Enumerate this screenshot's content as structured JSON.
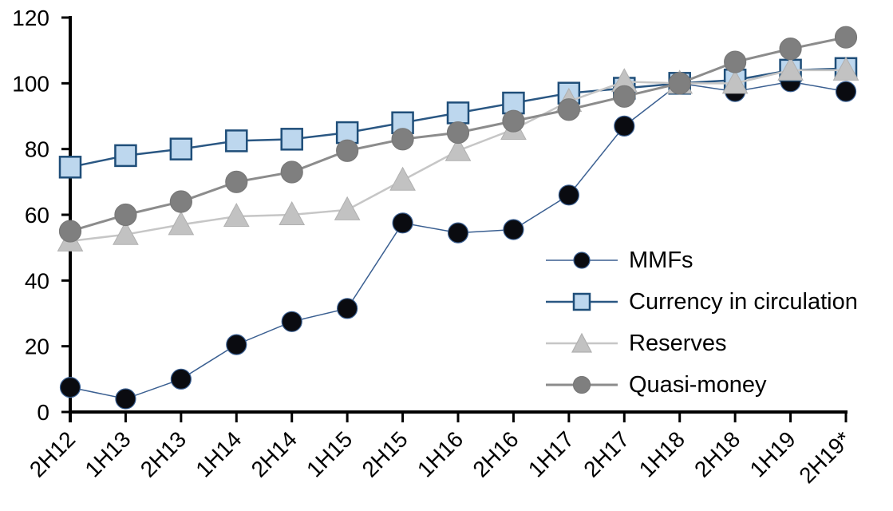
{
  "chart_data": {
    "type": "line",
    "title": "",
    "xlabel": "",
    "ylabel": "",
    "categories": [
      "2H12",
      "1H13",
      "2H13",
      "1H14",
      "2H14",
      "1H15",
      "2H15",
      "1H16",
      "2H16",
      "1H17",
      "2H17",
      "1H18",
      "2H18",
      "1H19",
      "2H19*"
    ],
    "series": [
      {
        "name": "MMFs",
        "marker": "circle",
        "color": "#3a5f91",
        "marker_fill": "#0a0b10",
        "marker_stroke": "#3a5f91",
        "line_width": 1.5,
        "values": [
          7.5,
          4,
          10,
          20.5,
          27.5,
          31.5,
          57.5,
          54.5,
          55.5,
          66,
          87,
          100,
          97.5,
          100.5,
          97.5
        ]
      },
      {
        "name": "Currency in circulation",
        "marker": "square",
        "color": "#2a5783",
        "marker_fill": "#bdd7ee",
        "marker_stroke": "#1f4e79",
        "line_width": 2.5,
        "values": [
          74.5,
          78,
          80,
          82.5,
          83,
          85,
          88,
          91,
          94,
          97,
          98.5,
          100,
          101,
          104,
          104.5
        ]
      },
      {
        "name": "Reserves",
        "marker": "triangle",
        "color": "#c6c6c6",
        "marker_fill": "#c2c2c2",
        "marker_stroke": "#b0b0b0",
        "line_width": 2.5,
        "values": [
          52,
          54,
          57,
          59.5,
          60,
          61.5,
          70.5,
          79.5,
          86,
          94.5,
          100.5,
          100,
          100,
          104,
          104
        ]
      },
      {
        "name": "Quasi-money",
        "marker": "circle",
        "color": "#8c8c8c",
        "marker_fill": "#7f7f7f",
        "marker_stroke": "#787878",
        "line_width": 3,
        "values": [
          55,
          60,
          64,
          70,
          73,
          79.5,
          83,
          85,
          88.5,
          92,
          96,
          100,
          106.5,
          110.5,
          114
        ]
      }
    ],
    "ylim": [
      0,
      120
    ],
    "yticks": [
      0,
      20,
      40,
      60,
      80,
      100,
      120
    ],
    "grid": false,
    "legend_position": "inside-right",
    "axis_color": "#000000",
    "background_color": "#ffffff"
  }
}
